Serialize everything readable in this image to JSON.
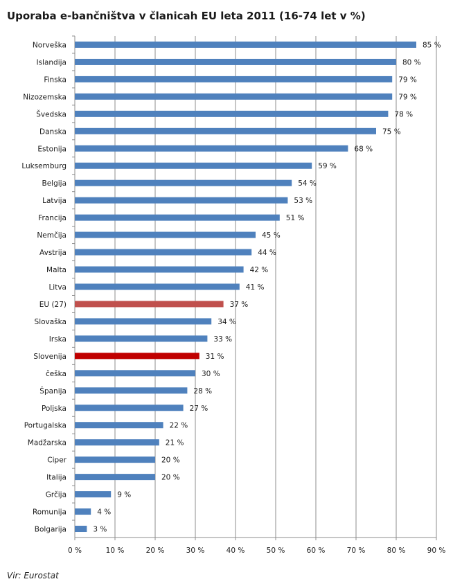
{
  "title": "Uporaba e-bančništva v članicah EU leta 2011 (16-74 let v %)",
  "source": "Vir: Eurostat",
  "chart_data": {
    "type": "bar",
    "orientation": "horizontal",
    "title": "Uporaba e-bančništva v članicah EU leta 2011 (16-74 let v %)",
    "xlabel": "",
    "ylabel": "",
    "xlim": [
      0,
      90
    ],
    "x_ticks": [
      "0 %",
      "10 %",
      "20 %",
      "30 %",
      "40 %",
      "50 %",
      "60 %",
      "70 %",
      "80 %",
      "90 %"
    ],
    "grid": "vertical",
    "legend": "none",
    "colors": {
      "default": "#4f81bd",
      "eu": "#c0504d",
      "slovenia": "#c00000"
    },
    "categories": [
      "Norveška",
      "Islandija",
      "Finska",
      "Nizozemska",
      "Švedska",
      "Danska",
      "Estonija",
      "Luksemburg",
      "Belgija",
      "Latvija",
      "Francija",
      "Nemčija",
      "Avstrija",
      "Malta",
      "Litva",
      "EU (27)",
      "Slovaška",
      "Irska",
      "Slovenija",
      "češka",
      "Španija",
      "Poljska",
      "Portugalska",
      "Madžarska",
      "Ciper",
      "Italija",
      "Grčija",
      "Romunija",
      "Bolgarija"
    ],
    "values": [
      85,
      80,
      79,
      79,
      78,
      75,
      68,
      59,
      54,
      53,
      51,
      45,
      44,
      42,
      41,
      37,
      34,
      33,
      31,
      30,
      28,
      27,
      22,
      21,
      20,
      20,
      9,
      4,
      3
    ],
    "value_labels": [
      "85 %",
      "80 %",
      "79 %",
      "79 %",
      "78 %",
      "75 %",
      "68 %",
      "59 %",
      "54 %",
      "53 %",
      "51 %",
      "45 %",
      "44 %",
      "42 %",
      "41 %",
      "37 %",
      "34 %",
      "33 %",
      "31 %",
      "30 %",
      "28 %",
      "27 %",
      "22 %",
      "21 %",
      "20 %",
      "20 %",
      "9 %",
      "4 %",
      "3 %"
    ],
    "highlight": {
      "EU (27)": "eu",
      "Slovenija": "slovenia"
    }
  }
}
